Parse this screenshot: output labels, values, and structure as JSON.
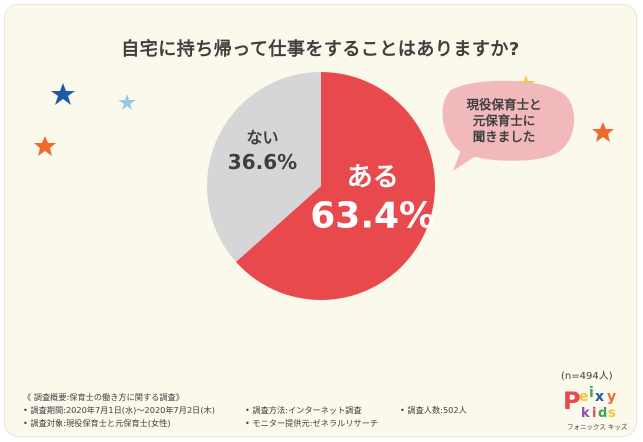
{
  "title": "自宅に持ち帰って仕事をすることはありますか?",
  "chart_data": {
    "type": "pie",
    "title": "自宅に持ち帰って仕事をすることはありますか?",
    "slices": [
      {
        "label": "ある",
        "value": 63.4,
        "display": "63.4%",
        "color": "#e8494c"
      },
      {
        "label": "ない",
        "value": 36.6,
        "display": "36.6%",
        "color": "#d6d6d8"
      }
    ],
    "sample": "(n=494人)"
  },
  "bubble": {
    "lines": [
      "現役保育士と",
      "元保育士に",
      "聞きました"
    ]
  },
  "notes": {
    "header": "《 調査概要:保育士の働き方に関する調査》",
    "period": "• 調査期間:2020年7月1日(水)〜2020年7月2日(木)",
    "method": "• 調査方法:インターネット調査",
    "count": "• 調査人数:502人",
    "target": "• 調査対象:現役保育士と元保育士(女性)",
    "provider": "• モニター提供元:ゼネラルリサーチ"
  },
  "logo": {
    "text": "Peixy kids",
    "caption": "フォニックス キッズ"
  },
  "colors": {
    "background": "#fbf8ec",
    "yes": "#e8494c",
    "no": "#d6d6d8",
    "bubble": "#f2b9bc",
    "star_blue": "#1f5aa8",
    "star_light": "#8ec9ee",
    "star_orange": "#f0682c",
    "star_yellow": "#f7c531"
  }
}
